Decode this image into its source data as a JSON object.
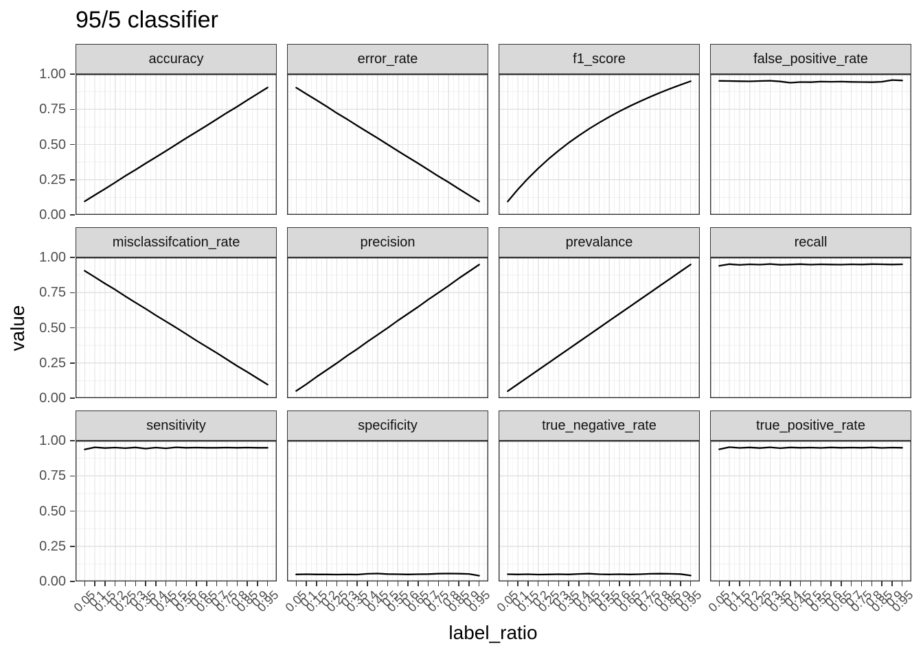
{
  "colors": {
    "line": "#000000",
    "strip_bg": "#d9d9d9",
    "strip_border": "#333333",
    "panel_border": "#333333",
    "grid_major": "#e2e2e2",
    "grid_minor": "#f0f0f0",
    "tick_mark": "#333333",
    "tick_label": "#4d4d4d"
  },
  "chart_data": {
    "type": "line",
    "title": "95/5 classifier",
    "xlabel": "label_ratio",
    "ylabel": "value",
    "legend": "none",
    "grid": true,
    "facet_layout": {
      "rows": 3,
      "cols": 4
    },
    "ylim": [
      0,
      1
    ],
    "xlim_panel": [
      0.005,
      0.995
    ],
    "y_ticks": [
      {
        "label": "1.00",
        "value": 1.0
      },
      {
        "label": "0.75",
        "value": 0.75
      },
      {
        "label": "0.50",
        "value": 0.5
      },
      {
        "label": "0.25",
        "value": 0.25
      },
      {
        "label": "0.00",
        "value": 0.0
      }
    ],
    "y_minor": [
      0.125,
      0.375,
      0.625,
      0.875
    ],
    "x": [
      0.05,
      0.1,
      0.15,
      0.2,
      0.25,
      0.3,
      0.35,
      0.4,
      0.45,
      0.5,
      0.55,
      0.6,
      0.65,
      0.7,
      0.75,
      0.8,
      0.85,
      0.9,
      0.95
    ],
    "x_tick_labels": [
      "0.05",
      "0.1",
      "0.15",
      "0.2",
      "0.25",
      "0.3",
      "0.35",
      "0.4",
      "0.45",
      "0.5",
      "0.55",
      "0.6",
      "0.65",
      "0.7",
      "0.75",
      "0.8",
      "0.85",
      "0.9",
      "0.95"
    ],
    "facets": [
      {
        "name": "accuracy",
        "values": [
          0.096,
          0.141,
          0.185,
          0.23,
          0.277,
          0.32,
          0.366,
          0.41,
          0.454,
          0.5,
          0.546,
          0.59,
          0.634,
          0.68,
          0.726,
          0.769,
          0.815,
          0.86,
          0.905
        ]
      },
      {
        "name": "error_rate",
        "values": [
          0.904,
          0.859,
          0.815,
          0.77,
          0.723,
          0.68,
          0.634,
          0.59,
          0.546,
          0.5,
          0.454,
          0.41,
          0.366,
          0.32,
          0.274,
          0.231,
          0.185,
          0.14,
          0.095
        ]
      },
      {
        "name": "f1_score",
        "values": [
          0.095,
          0.181,
          0.259,
          0.33,
          0.396,
          0.456,
          0.512,
          0.563,
          0.611,
          0.655,
          0.697,
          0.736,
          0.772,
          0.806,
          0.838,
          0.869,
          0.897,
          0.924,
          0.95
        ]
      },
      {
        "name": "false_positive_rate",
        "values": [
          0.952,
          0.951,
          0.95,
          0.949,
          0.951,
          0.953,
          0.948,
          0.939,
          0.944,
          0.943,
          0.947,
          0.946,
          0.947,
          0.945,
          0.944,
          0.943,
          0.946,
          0.958,
          0.955
        ]
      },
      {
        "name": "misclassifcation_rate",
        "values": [
          0.905,
          0.86,
          0.814,
          0.771,
          0.724,
          0.679,
          0.635,
          0.589,
          0.545,
          0.501,
          0.455,
          0.409,
          0.365,
          0.321,
          0.275,
          0.229,
          0.186,
          0.141,
          0.096
        ]
      },
      {
        "name": "precision",
        "values": [
          0.051,
          0.099,
          0.151,
          0.2,
          0.249,
          0.301,
          0.349,
          0.401,
          0.45,
          0.499,
          0.551,
          0.6,
          0.649,
          0.701,
          0.75,
          0.799,
          0.851,
          0.9,
          0.949
        ]
      },
      {
        "name": "prevalance",
        "values": [
          0.05,
          0.1,
          0.15,
          0.2,
          0.25,
          0.3,
          0.35,
          0.4,
          0.45,
          0.5,
          0.55,
          0.6,
          0.65,
          0.7,
          0.75,
          0.8,
          0.85,
          0.9,
          0.95
        ]
      },
      {
        "name": "recall",
        "values": [
          0.94,
          0.952,
          0.947,
          0.951,
          0.949,
          0.953,
          0.948,
          0.95,
          0.952,
          0.949,
          0.951,
          0.95,
          0.949,
          0.951,
          0.95,
          0.952,
          0.951,
          0.95,
          0.951
        ]
      },
      {
        "name": "sensitivity",
        "values": [
          0.938,
          0.953,
          0.948,
          0.951,
          0.947,
          0.952,
          0.944,
          0.951,
          0.946,
          0.953,
          0.95,
          0.951,
          0.95,
          0.95,
          0.951,
          0.95,
          0.951,
          0.95,
          0.95
        ]
      },
      {
        "name": "specificity",
        "values": [
          0.05,
          0.051,
          0.05,
          0.05,
          0.049,
          0.05,
          0.049,
          0.054,
          0.056,
          0.052,
          0.051,
          0.05,
          0.051,
          0.052,
          0.055,
          0.056,
          0.055,
          0.053,
          0.041
        ]
      },
      {
        "name": "true_negative_rate",
        "values": [
          0.051,
          0.05,
          0.051,
          0.049,
          0.05,
          0.051,
          0.05,
          0.053,
          0.055,
          0.051,
          0.05,
          0.051,
          0.05,
          0.051,
          0.054,
          0.055,
          0.054,
          0.052,
          0.042
        ]
      },
      {
        "name": "true_positive_rate",
        "values": [
          0.939,
          0.954,
          0.949,
          0.952,
          0.948,
          0.953,
          0.947,
          0.952,
          0.95,
          0.951,
          0.949,
          0.952,
          0.95,
          0.951,
          0.95,
          0.952,
          0.949,
          0.951,
          0.95
        ]
      }
    ]
  }
}
